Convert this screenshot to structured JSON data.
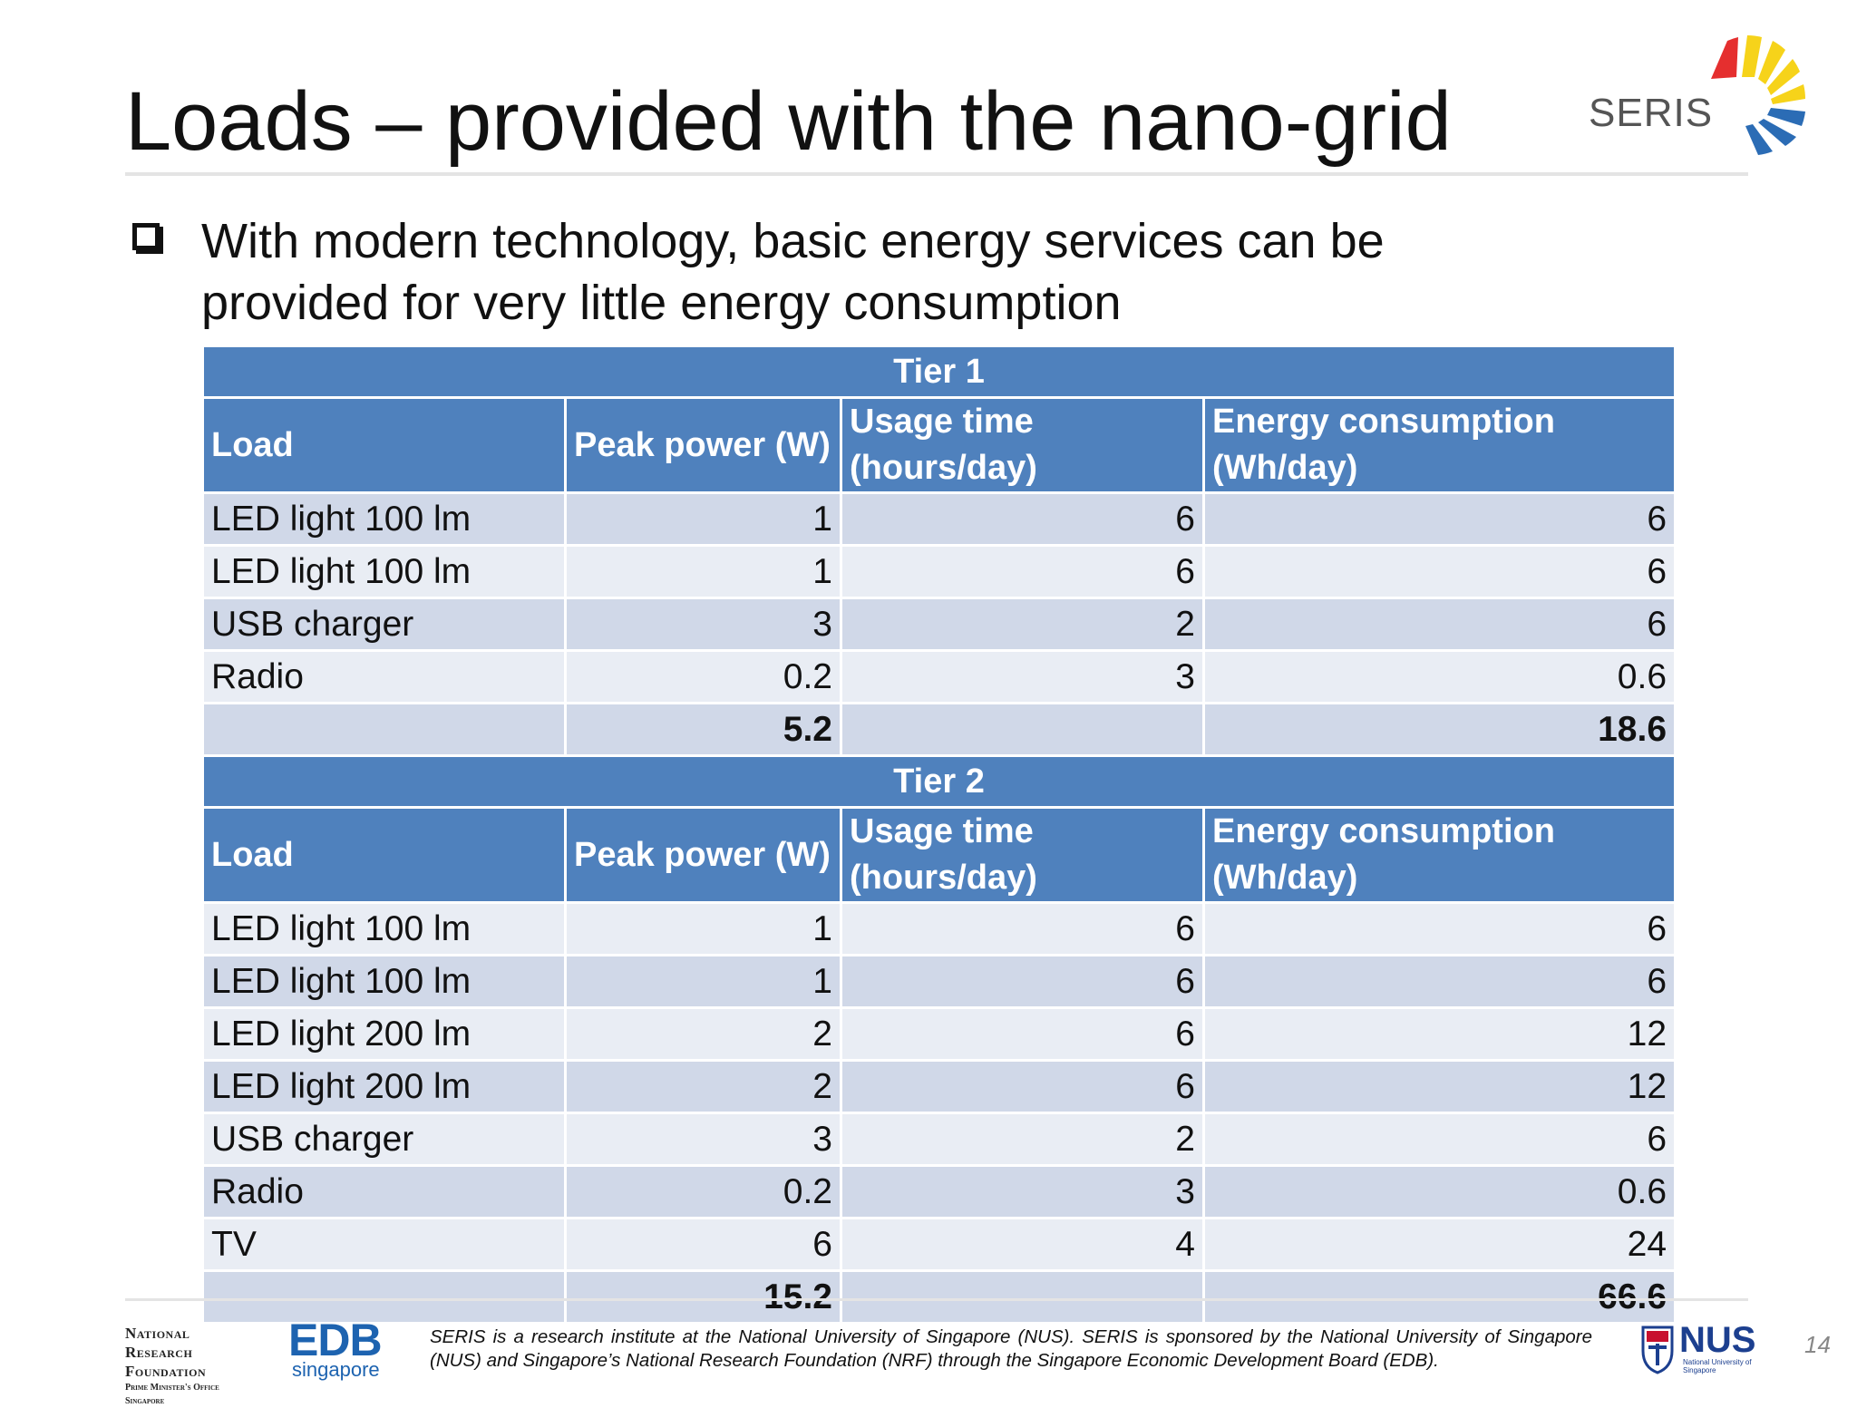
{
  "slide": {
    "title": "Loads – provided with the nano-grid",
    "lead": "With modern technology, basic energy services can be provided for very little energy consumption",
    "page_number": "14"
  },
  "logo": {
    "text": "SERIS"
  },
  "columns": {
    "load": "Load",
    "peak_power": "Peak power (W)",
    "usage_time": "Usage time (hours/day)",
    "energy": "Energy consumption (Wh/day)"
  },
  "tier1": {
    "label": "Tier 1",
    "rows": [
      {
        "load": "LED light 100 lm",
        "peak": "1",
        "usage": "6",
        "energy": "6"
      },
      {
        "load": "LED light 100 lm",
        "peak": "1",
        "usage": "6",
        "energy": "6"
      },
      {
        "load": "USB charger",
        "peak": "3",
        "usage": "2",
        "energy": "6"
      },
      {
        "load": "Radio",
        "peak": "0.2",
        "usage": "3",
        "energy": "0.6"
      }
    ],
    "total": {
      "peak": "5.2",
      "energy": "18.6"
    }
  },
  "tier2": {
    "label": "Tier 2",
    "rows": [
      {
        "load": "LED light 100 lm",
        "peak": "1",
        "usage": "6",
        "energy": "6"
      },
      {
        "load": "LED light 100 lm",
        "peak": "1",
        "usage": "6",
        "energy": "6"
      },
      {
        "load": "LED light 200 lm",
        "peak": "2",
        "usage": "6",
        "energy": "12"
      },
      {
        "load": "LED light 200 lm",
        "peak": "2",
        "usage": "6",
        "energy": "12"
      },
      {
        "load": "USB charger",
        "peak": "3",
        "usage": "2",
        "energy": "6"
      },
      {
        "load": "Radio",
        "peak": "0.2",
        "usage": "3",
        "energy": "0.6"
      },
      {
        "load": "TV",
        "peak": "6",
        "usage": "4",
        "energy": "24"
      }
    ],
    "total": {
      "peak": "15.2",
      "energy": "66.6"
    }
  },
  "footer": {
    "nrf_lines": [
      "National",
      "Research",
      "Foundation"
    ],
    "nrf_sub_lines": [
      "Prime Minister's Office",
      "Singapore"
    ],
    "edb_main": "EDB",
    "edb_sub": "singapore",
    "disclaimer": "SERIS is a research institute at the National University of Singapore (NUS). SERIS is sponsored by the National University of Singapore (NUS) and Singapore’s National Research Foundation (NRF) through the Singapore Economic Development Board (EDB).",
    "nus_main": "NUS",
    "nus_sub": "National University of Singapore"
  },
  "colors": {
    "header_blue": "#4f81bd",
    "row_dark": "#d0d8e8",
    "row_light": "#e9edf4",
    "logo_red": "#e52f2f",
    "logo_yellow": "#f6d31a",
    "logo_blue": "#2b6cb5"
  }
}
